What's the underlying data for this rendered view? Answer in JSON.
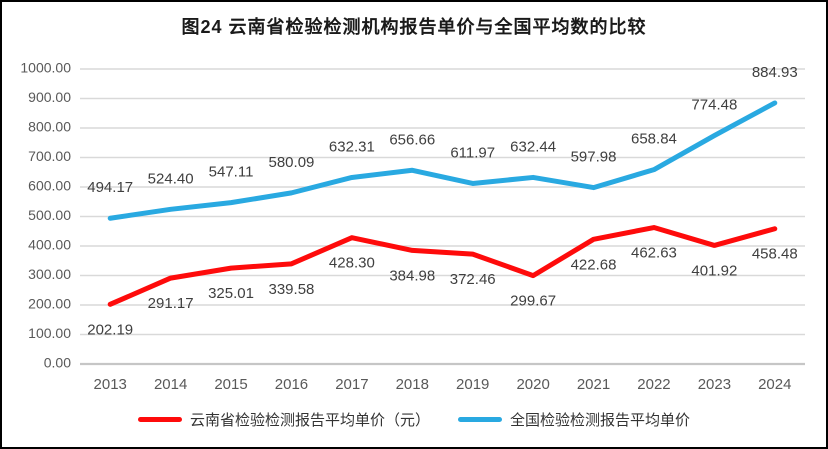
{
  "chart_data": {
    "type": "line",
    "title": "图24 云南省检验检测机构报告单价与全国平均数的比较",
    "categories": [
      "2013",
      "2014",
      "2015",
      "2016",
      "2017",
      "2018",
      "2019",
      "2020",
      "2021",
      "2022",
      "2023",
      "2024"
    ],
    "series": [
      {
        "name": "云南省检验检测报告平均单价（元）",
        "color": "#fe0b0b",
        "values": [
          202.19,
          291.17,
          325.01,
          339.58,
          428.3,
          384.98,
          372.46,
          299.67,
          422.68,
          462.63,
          401.92,
          458.48
        ]
      },
      {
        "name": "全国检验检测报告平均单价",
        "color": "#29a9e1",
        "values": [
          494.17,
          524.4,
          547.11,
          580.09,
          632.31,
          656.66,
          611.97,
          632.44,
          597.98,
          658.84,
          774.48,
          884.93
        ]
      }
    ],
    "ylim": [
      0,
      1000
    ],
    "yticks": [
      "0.00",
      "100.00",
      "200.00",
      "300.00",
      "400.00",
      "500.00",
      "600.00",
      "700.00",
      "800.00",
      "900.00",
      "1000.00"
    ],
    "grid": true,
    "data_labels": true,
    "legend_position": "bottom",
    "xlabel": "",
    "ylabel": ""
  },
  "colors": {
    "grid": "#d9d9d9",
    "axis": "#c6c6c6",
    "tick_label": "#595959",
    "data_label": "#3f3f3f",
    "title": "#1a1a1a",
    "border": "#000000"
  }
}
